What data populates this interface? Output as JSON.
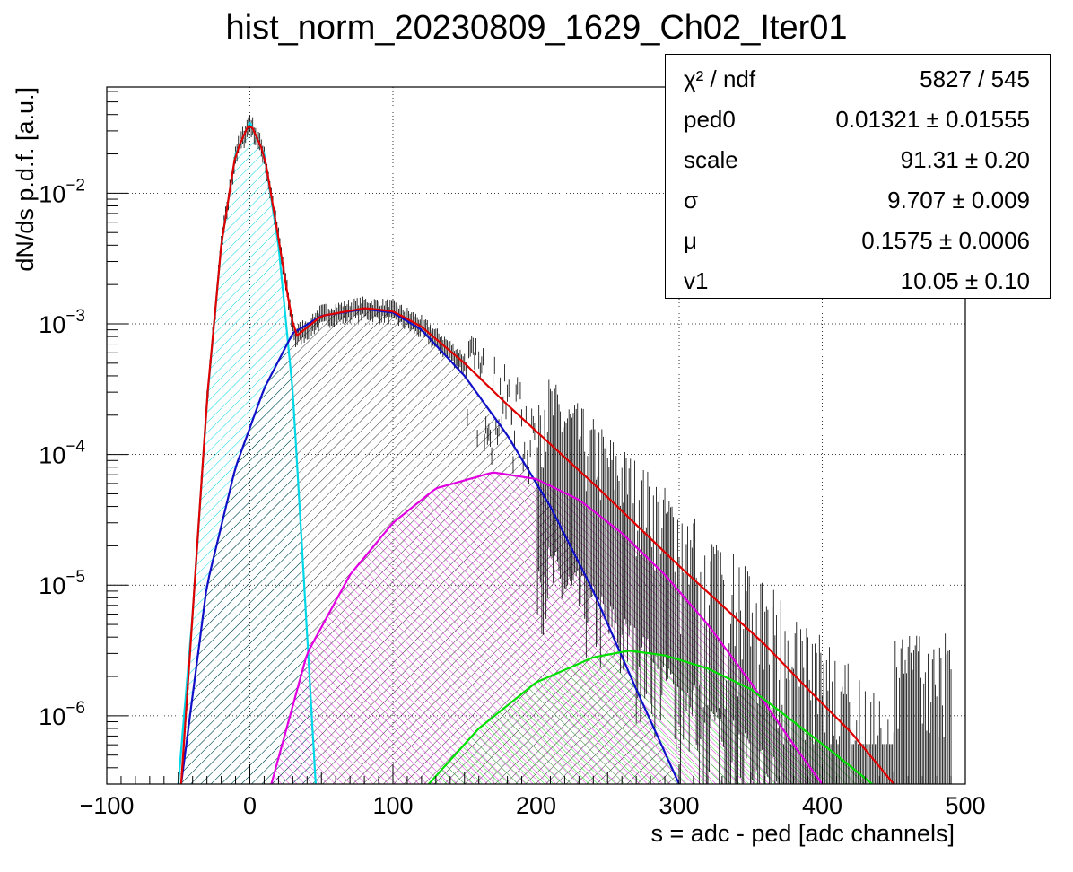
{
  "chart_data": {
    "type": "histogram-fit",
    "title": "hist_norm_20230809_1629_Ch02_Iter01",
    "xlabel": "s = adc - ped [adc channels]",
    "ylabel": "dN/ds p.d.f. [a.u.]",
    "xlim": [
      -100,
      500
    ],
    "ylim": [
      3e-07,
      0.065
    ],
    "yscale": "log",
    "grid": true,
    "x_ticks": [
      -100,
      0,
      100,
      200,
      300,
      400,
      500
    ],
    "x_tick_labels": [
      "−100",
      "0",
      "100",
      "200",
      "300",
      "400",
      "500"
    ],
    "y_ticks": [
      1e-06,
      1e-05,
      0.0001,
      0.001,
      0.01
    ],
    "y_tick_labels": [
      {
        "base": "10",
        "exp": "−6"
      },
      {
        "base": "10",
        "exp": "−5"
      },
      {
        "base": "10",
        "exp": "−4"
      },
      {
        "base": "10",
        "exp": "−3"
      },
      {
        "base": "10",
        "exp": "−2"
      }
    ],
    "stats": [
      {
        "name": "χ² / ndf",
        "value": "5827 / 545"
      },
      {
        "name": "ped0",
        "value": "0.01321 ± 0.01555"
      },
      {
        "name": "scale",
        "value": "91.31 ± 0.20"
      },
      {
        "name": "σ",
        "value": "9.707  ± 0.009"
      },
      {
        "name": "μ",
        "value": "0.1575  ± 0.0006"
      },
      {
        "name": "v1",
        "value": "10.05 ± 0.10"
      }
    ],
    "components": [
      {
        "color": "#00d8e8",
        "hatch": true,
        "points": [
          [
            -50,
            3e-07
          ],
          [
            -40,
            6e-06
          ],
          [
            -30,
            0.00025
          ],
          [
            -20,
            0.004
          ],
          [
            -10,
            0.02
          ],
          [
            0,
            0.035
          ],
          [
            10,
            0.02
          ],
          [
            20,
            0.004
          ],
          [
            30,
            0.0003
          ],
          [
            38,
            1e-05
          ],
          [
            46,
            3e-07
          ]
        ]
      },
      {
        "color": "#1010c8",
        "hatch": true,
        "points": [
          [
            -48,
            3e-07
          ],
          [
            -30,
            1e-05
          ],
          [
            -10,
            8e-05
          ],
          [
            10,
            0.00032
          ],
          [
            30,
            0.00085
          ],
          [
            50,
            0.00115
          ],
          [
            80,
            0.0013
          ],
          [
            100,
            0.00122
          ],
          [
            120,
            0.0009
          ],
          [
            150,
            0.0004
          ],
          [
            180,
            0.00014
          ],
          [
            210,
            4e-05
          ],
          [
            240,
            9e-06
          ],
          [
            270,
            1.6e-06
          ],
          [
            300,
            3e-07
          ]
        ]
      },
      {
        "color": "#e000e0",
        "hatch": true,
        "points": [
          [
            15,
            3e-07
          ],
          [
            40,
            3e-06
          ],
          [
            70,
            1.2e-05
          ],
          [
            100,
            3e-05
          ],
          [
            130,
            5.5e-05
          ],
          [
            170,
            7.3e-05
          ],
          [
            200,
            6.5e-05
          ],
          [
            230,
            4.5e-05
          ],
          [
            260,
            2.5e-05
          ],
          [
            290,
            1.2e-05
          ],
          [
            320,
            5e-06
          ],
          [
            350,
            1.8e-06
          ],
          [
            380,
            6e-07
          ],
          [
            400,
            3e-07
          ]
        ]
      },
      {
        "color": "#00e000",
        "hatch": true,
        "points": [
          [
            125,
            3e-07
          ],
          [
            160,
            8e-07
          ],
          [
            200,
            1.8e-06
          ],
          [
            240,
            2.8e-06
          ],
          [
            265,
            3.15e-06
          ],
          [
            290,
            2.9e-06
          ],
          [
            320,
            2.3e-06
          ],
          [
            350,
            1.6e-06
          ],
          [
            380,
            9e-07
          ],
          [
            410,
            5e-07
          ],
          [
            435,
            3e-07
          ]
        ]
      },
      {
        "color": "#e00000",
        "hatch": false,
        "points": [
          [
            -48,
            3e-07
          ],
          [
            -40,
            6e-06
          ],
          [
            -30,
            0.00026
          ],
          [
            -20,
            0.004
          ],
          [
            -10,
            0.02
          ],
          [
            0,
            0.035
          ],
          [
            10,
            0.02
          ],
          [
            20,
            0.0045
          ],
          [
            28,
            0.0013
          ],
          [
            32,
            0.0008
          ],
          [
            38,
            0.0009
          ],
          [
            50,
            0.00115
          ],
          [
            80,
            0.00132
          ],
          [
            100,
            0.00125
          ],
          [
            120,
            0.00095
          ],
          [
            150,
            0.0005
          ],
          [
            180,
            0.00024
          ],
          [
            210,
            0.00012
          ],
          [
            240,
            6e-05
          ],
          [
            270,
            2.9e-05
          ],
          [
            300,
            1.4e-05
          ],
          [
            330,
            7e-06
          ],
          [
            360,
            3.5e-06
          ],
          [
            390,
            1.6e-06
          ],
          [
            420,
            7.5e-07
          ],
          [
            450,
            3e-07
          ]
        ]
      }
    ]
  }
}
